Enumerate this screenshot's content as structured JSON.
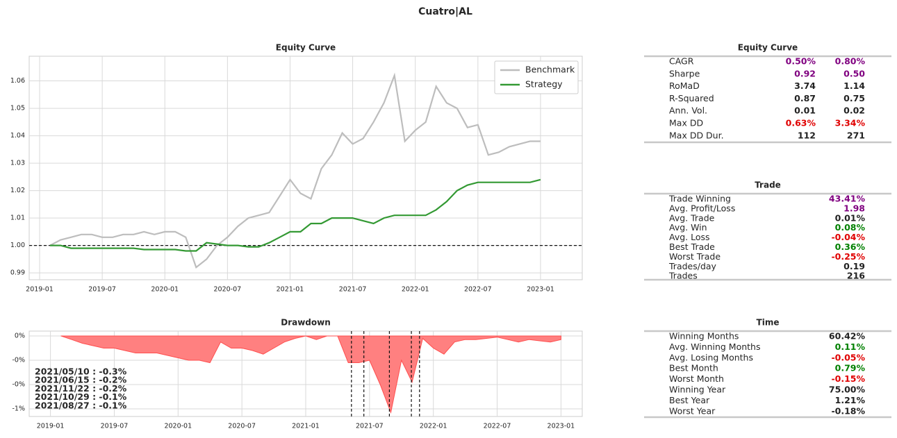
{
  "title": "Cuatro|AL",
  "chart_data": [
    {
      "type": "line",
      "title": "Equity Curve",
      "x": [
        "2019-02",
        "2019-03",
        "2019-04",
        "2019-05",
        "2019-06",
        "2019-07",
        "2019-08",
        "2019-09",
        "2019-10",
        "2019-11",
        "2019-12",
        "2020-01",
        "2020-02",
        "2020-03",
        "2020-04",
        "2020-05",
        "2020-06",
        "2020-07",
        "2020-08",
        "2020-09",
        "2020-10",
        "2020-11",
        "2020-12",
        "2021-01",
        "2021-02",
        "2021-03",
        "2021-04",
        "2021-05",
        "2021-06",
        "2021-07",
        "2021-08",
        "2021-09",
        "2021-10",
        "2021-11",
        "2021-12",
        "2022-01",
        "2022-02",
        "2022-03",
        "2022-04",
        "2022-05",
        "2022-06",
        "2022-07",
        "2022-08",
        "2022-09",
        "2022-10",
        "2022-11",
        "2022-12",
        "2023-01"
      ],
      "series": [
        {
          "name": "Benchmark",
          "color": "#bdbdbd",
          "values": [
            1.0,
            1.002,
            1.003,
            1.004,
            1.004,
            1.003,
            1.003,
            1.004,
            1.004,
            1.005,
            1.004,
            1.005,
            1.005,
            1.003,
            0.992,
            0.995,
            1.0,
            1.003,
            1.007,
            1.01,
            1.011,
            1.012,
            1.018,
            1.024,
            1.019,
            1.017,
            1.028,
            1.033,
            1.041,
            1.037,
            1.039,
            1.045,
            1.052,
            1.062,
            1.038,
            1.042,
            1.045,
            1.058,
            1.052,
            1.05,
            1.043,
            1.044,
            1.033,
            1.034,
            1.036,
            1.037,
            1.038,
            1.038
          ]
        },
        {
          "name": "Strategy",
          "color": "#339933",
          "values": [
            1.0,
            1.0,
            0.999,
            0.999,
            0.999,
            0.999,
            0.999,
            0.999,
            0.999,
            0.9985,
            0.9985,
            0.9985,
            0.9985,
            0.998,
            0.998,
            1.001,
            1.0005,
            1.0,
            1.0,
            0.9995,
            0.9995,
            1.001,
            1.003,
            1.005,
            1.005,
            1.008,
            1.008,
            1.01,
            1.01,
            1.01,
            1.009,
            1.008,
            1.01,
            1.011,
            1.011,
            1.011,
            1.011,
            1.013,
            1.016,
            1.02,
            1.022,
            1.023,
            1.023,
            1.023,
            1.023,
            1.023,
            1.023,
            1.024
          ]
        }
      ],
      "xlim": [
        "2018-12",
        "2023-05"
      ],
      "xticks": [
        "2019-01",
        "2019-07",
        "2020-01",
        "2020-07",
        "2021-01",
        "2021-07",
        "2022-01",
        "2022-07",
        "2023-01"
      ],
      "ylim": [
        0.9875,
        1.069
      ],
      "yticks": [
        0.99,
        {
          "value": 1,
          "label": "1.00"
        },
        1.01,
        1.02,
        1.03,
        1.04,
        1.05,
        1.06
      ],
      "hline": 1,
      "grid": true,
      "legend": "upper right"
    },
    {
      "type": "area",
      "title": "Drawdown",
      "color": "#ff8080",
      "x": [
        "2019-02",
        "2019-03",
        "2019-04",
        "2019-05",
        "2019-06",
        "2019-07",
        "2019-08",
        "2019-09",
        "2019-10",
        "2019-11",
        "2019-12",
        "2020-01",
        "2020-02",
        "2020-03",
        "2020-04",
        "2020-05",
        "2020-06",
        "2020-07",
        "2020-08",
        "2020-09",
        "2020-10",
        "2020-11",
        "2020-12",
        "2021-01",
        "2021-02",
        "2021-03",
        "2021-04",
        "2021-05",
        "2021-06",
        "2021-07",
        "2021-08",
        "2021-09",
        "2021-10",
        "2021-11",
        "2021-12",
        "2022-01",
        "2022-02",
        "2022-03",
        "2022-04",
        "2022-05",
        "2022-06",
        "2022-07",
        "2022-08",
        "2022-09",
        "2022-10",
        "2022-11",
        "2022-12",
        "2023-01"
      ],
      "values": [
        0,
        -0.03,
        -0.06,
        -0.08,
        -0.1,
        -0.1,
        -0.12,
        -0.14,
        -0.14,
        -0.14,
        -0.16,
        -0.18,
        -0.2,
        -0.2,
        -0.22,
        -0.05,
        -0.1,
        -0.1,
        -0.12,
        -0.15,
        -0.1,
        -0.05,
        -0.02,
        0,
        -0.03,
        0,
        0,
        -0.22,
        -0.22,
        -0.2,
        -0.4,
        -0.63,
        -0.2,
        -0.38,
        -0.02,
        -0.1,
        -0.15,
        -0.05,
        -0.03,
        -0.03,
        -0.02,
        -0.01,
        -0.03,
        -0.05,
        -0.03,
        -0.04,
        -0.05,
        -0.03
      ],
      "xlim": [
        "2018-11",
        "2023-03"
      ],
      "xticks": [
        "2019-01",
        "2019-07",
        "2020-01",
        "2020-07",
        "2021-01",
        "2021-07",
        "2022-01",
        "2022-07",
        "2023-01"
      ],
      "ylim": [
        -0.663,
        0.04
      ],
      "yticks": [
        {
          "value": 0,
          "label": "0%"
        },
        {
          "value": -0.2,
          "label": "-0%"
        },
        {
          "value": -0.4,
          "label": "-0%"
        },
        {
          "value": -0.6,
          "label": "-1%"
        }
      ],
      "vlines": [
        "2021-05-10",
        "2021-06-15",
        "2021-08-27",
        "2021-10-29",
        "2021-11-22"
      ],
      "annotations": [
        "2021/05/10 : -0.3%",
        "2021/06/15 : -0.2%",
        "2021/11/22 : -0.2%",
        "2021/10/29 : -0.1%",
        "2021/08/27 : -0.1%"
      ],
      "grid": true
    }
  ],
  "tables": [
    {
      "title": "Equity Curve",
      "rows": [
        [
          "CAGR",
          "0.50%",
          "0.80%"
        ],
        [
          "Sharpe",
          "0.92",
          "0.50"
        ],
        [
          "RoMaD",
          "3.74",
          "1.14"
        ],
        [
          "R-Squared",
          "0.87",
          "0.75"
        ],
        [
          "Ann. Vol.",
          "0.01",
          "0.02"
        ],
        [
          "Max DD",
          "0.63%",
          "3.34%"
        ],
        [
          "Max DD Dur.",
          "112",
          "271"
        ]
      ],
      "row_colors": [
        "#800080",
        "#800080",
        "#222222",
        "#222222",
        "#222222",
        "#e00000",
        "#222222"
      ]
    },
    {
      "title": "Trade",
      "rows": [
        [
          "Trade Winning",
          "43.41%"
        ],
        [
          "Avg. Profit/Loss",
          "1.98"
        ],
        [
          "Avg. Trade",
          "0.01%"
        ],
        [
          "Avg. Win",
          "0.08%"
        ],
        [
          "Avg. Loss",
          "-0.04%"
        ],
        [
          "Best Trade",
          "0.36%"
        ],
        [
          "Worst Trade",
          "-0.25%"
        ],
        [
          "Trades/day",
          "0.19"
        ],
        [
          "Trades",
          "216"
        ]
      ],
      "row_colors": [
        "#800080",
        "#800080",
        "#222222",
        "#008000",
        "#e00000",
        "#008000",
        "#e00000",
        "#222222",
        "#222222"
      ]
    },
    {
      "title": "Time",
      "rows": [
        [
          "Winning Months",
          "60.42%"
        ],
        [
          "Avg. Winning Months",
          "0.11%"
        ],
        [
          "Avg. Losing Months",
          "-0.05%"
        ],
        [
          "Best Month",
          "0.79%"
        ],
        [
          "Worst Month",
          "-0.15%"
        ],
        [
          "Winning Year",
          "75.00%"
        ],
        [
          "Best Year",
          "1.21%"
        ],
        [
          "Worst Year",
          "-0.18%"
        ]
      ],
      "row_colors": [
        "#222222",
        "#008000",
        "#e00000",
        "#008000",
        "#e00000",
        "#222222",
        "#222222",
        "#222222"
      ]
    }
  ]
}
